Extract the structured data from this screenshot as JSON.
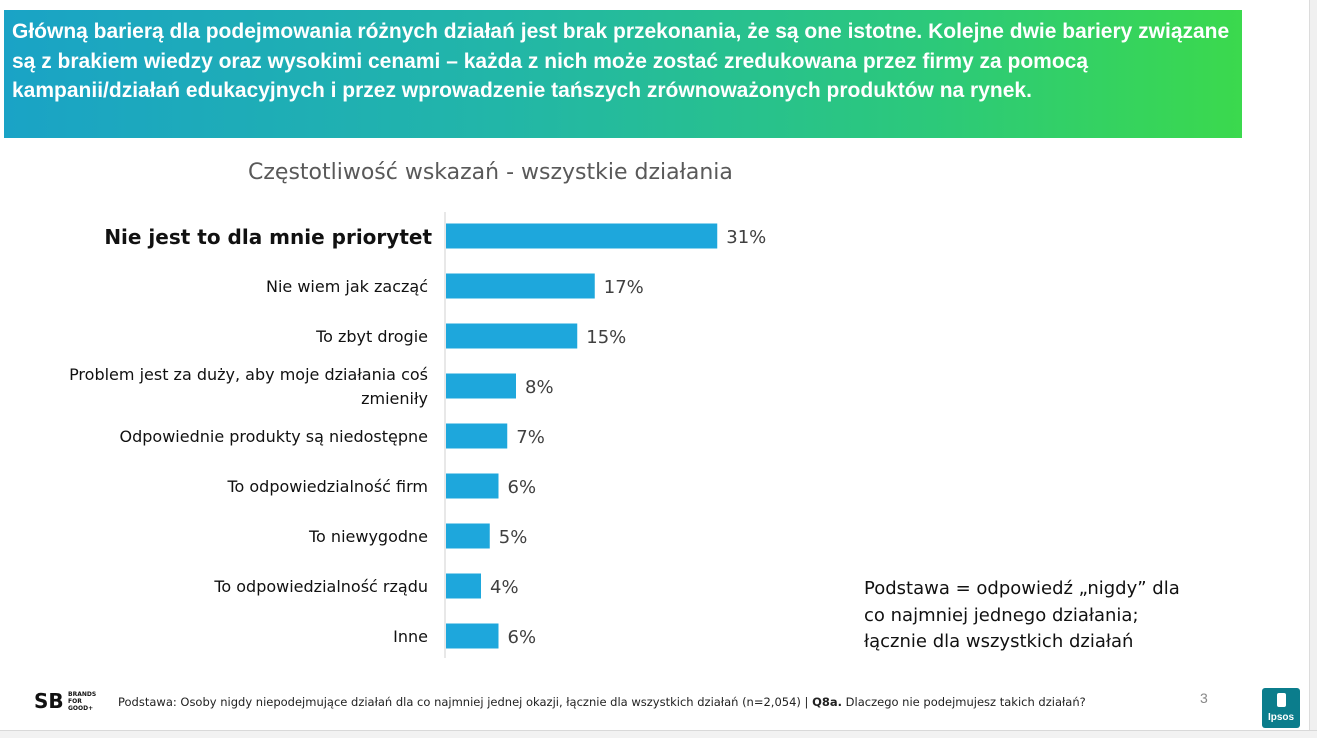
{
  "header": {
    "text": "Główną barierą dla podejmowania różnych działań jest brak przekonania, że są one istotne. Kolejne dwie bariery związane są z brakiem wiedzy oraz wysokimi cenami – każda z nich może zostać zredukowana przez firmy za pomocą kampanii/działań edukacyjnych i przez wprowadzenie tańszych zrównoważonych produktów na rynek."
  },
  "chart_data": {
    "type": "bar",
    "orientation": "horizontal",
    "title": "Częstotliwość wskazań - wszystkie działania",
    "categories": [
      "Nie jest to dla mnie priorytet",
      "Nie wiem jak zacząć",
      "To zbyt drogie",
      "Problem jest za duży, aby moje działania coś zmieniły",
      "Odpowiednie produkty są niedostępne",
      "To odpowiedzialność firm",
      "To niewygodne",
      "To odpowiedzialność rządu",
      "Inne"
    ],
    "values": [
      31,
      17,
      15,
      8,
      7,
      6,
      5,
      4,
      6
    ],
    "data_labels": [
      "31%",
      "17%",
      "15%",
      "8%",
      "7%",
      "6%",
      "5%",
      "4%",
      "6%"
    ],
    "bar_color": "#1ea7dc",
    "highlight_first_category": true
  },
  "note": "Podstawa = odpowiedź „nigdy” dla co najmniej jednego działania; łącznie dla wszystkich działań",
  "footer": {
    "logo_text": "BRANDS FOR GOOD+",
    "base_text": "Podstawa: Osoby nigdy niepodejmujące działań dla co najmniej jednej okazji, łącznie dla wszystkich działań (n=2,054) |",
    "question_id": "Q8a.",
    "question_text": "Dlaczego nie podejmujesz takich działań?",
    "page_number": "3",
    "brand": "Ipsos"
  }
}
